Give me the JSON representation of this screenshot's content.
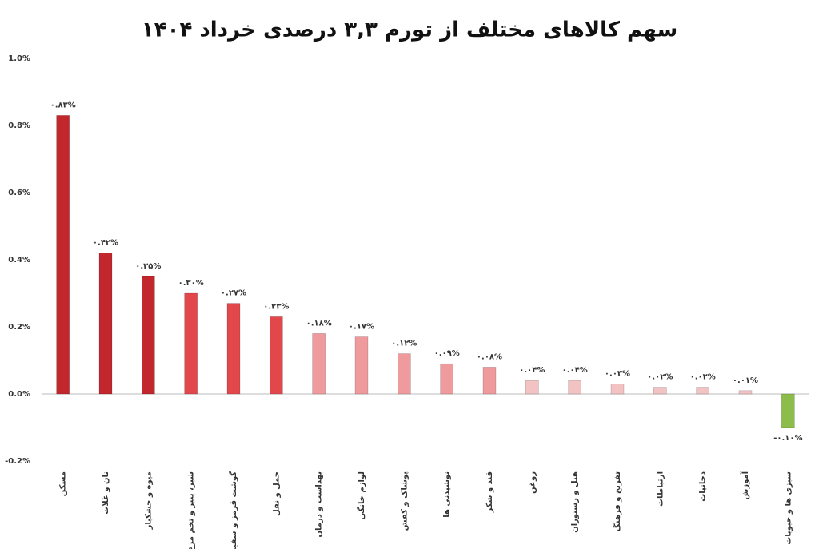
{
  "chart_data": {
    "type": "bar",
    "title": "سهم کالاهای مختلف از تورم ۳,۳ درصدی خرداد ۱۴۰۴",
    "categories": [
      "مسکن",
      "نان و غلات",
      "میوه و خشکبار",
      "شیر، پنیر و تخم مرغ",
      "گوشت قرمز و سفید",
      "حمل و نقل",
      "بهداشت و درمان",
      "لوازم خانگی",
      "پوشاک و کفش",
      "نوشیدنی ها",
      "قند و شکر",
      "روغن",
      "هتل و رستوران",
      "تفریح و فرهنگ",
      "ارتباطات",
      "دخانیات",
      "آموزش",
      "سبزی ها و حبوبات"
    ],
    "values": [
      0.83,
      0.42,
      0.35,
      0.3,
      0.27,
      0.23,
      0.18,
      0.17,
      0.12,
      0.09,
      0.08,
      0.04,
      0.04,
      0.03,
      0.02,
      0.02,
      0.01,
      -0.1
    ],
    "value_labels": [
      "۰.۸۳%",
      "۰.۴۲%",
      "۰.۳۵%",
      "۰.۳۰%",
      "۰.۲۷%",
      "۰.۲۳%",
      "۰.۱۸%",
      "۰.۱۷%",
      "۰.۱۲%",
      "۰.۰۹%",
      "۰.۰۸%",
      "۰.۰۴%",
      "۰.۰۴%",
      "۰.۰۳%",
      "۰.۰۲%",
      "۰.۰۲%",
      "۰.۰۱%",
      "-۰.۱۰%"
    ],
    "colors": [
      "#c1272d",
      "#c1272d",
      "#c1272d",
      "#e2474c",
      "#e2474c",
      "#e2474c",
      "#ef9a9c",
      "#ef9a9c",
      "#ef9a9c",
      "#ef9a9c",
      "#ef9a9c",
      "#f3c3c4",
      "#f3c3c4",
      "#f3c3c4",
      "#f3c3c4",
      "#f3c3c4",
      "#f3c3c4",
      "#8cbd4a"
    ],
    "ylim": [
      -0.2,
      1.0
    ],
    "yticks": [
      {
        "value": 1.0,
        "label": "1.0%"
      },
      {
        "value": 0.8,
        "label": "0.8%"
      },
      {
        "value": 0.6,
        "label": "0.6%"
      },
      {
        "value": 0.4,
        "label": "0.4%"
      },
      {
        "value": 0.2,
        "label": "0.2%"
      },
      {
        "value": 0.0,
        "label": "0.0%"
      },
      {
        "value": -0.2,
        "label": "-0.2%"
      }
    ],
    "grid": false
  }
}
